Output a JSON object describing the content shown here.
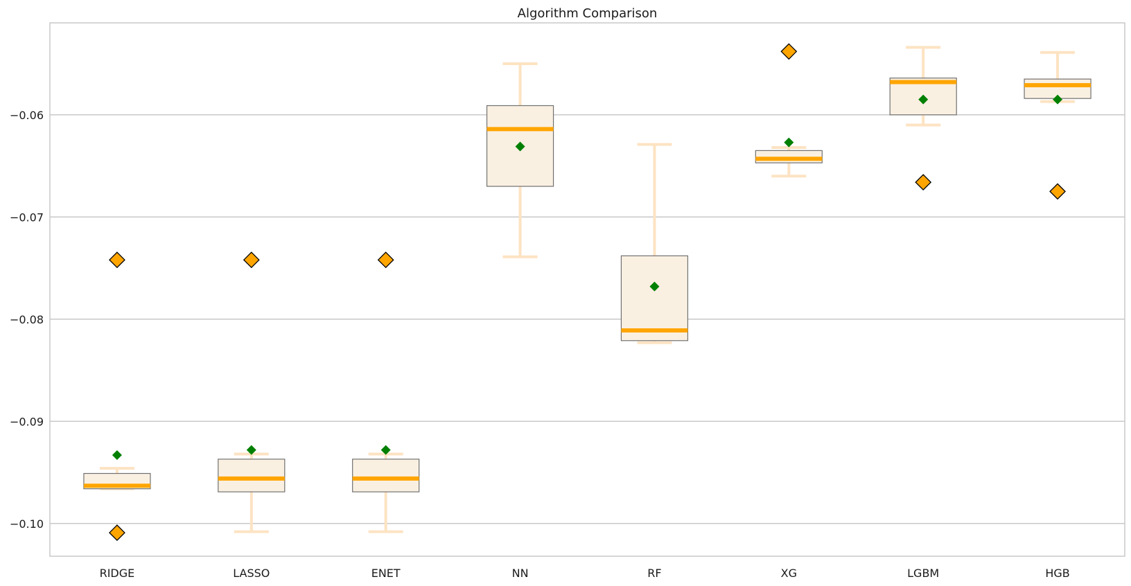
{
  "chart_data": {
    "type": "box",
    "title": "Algorithm Comparison",
    "xlabel": "",
    "ylabel": "",
    "categories": [
      "RIDGE",
      "LASSO",
      "ENET",
      "NN",
      "RF",
      "XG",
      "LGBM",
      "HGB"
    ],
    "ylim": [
      -0.1032,
      -0.051
    ],
    "yticks": [
      -0.06,
      -0.07,
      -0.08,
      -0.09,
      -0.1
    ],
    "ytick_labels": [
      "−0.06",
      "−0.07",
      "−0.08",
      "−0.09",
      "−0.10"
    ],
    "grid": "horizontal",
    "colors": {
      "box_fill": "#faf0e2",
      "box_edge": "#707070",
      "median": "#ffa500",
      "whisker": "#fde3c3",
      "mean_marker": "#008000",
      "flier_fill": "#ffa500",
      "flier_edge": "#000000",
      "grid": "#c8c8c8",
      "spine": "#c8c8c8"
    },
    "boxes": [
      {
        "label": "RIDGE",
        "whislo": -0.0966,
        "q1": -0.0966,
        "med": -0.0963,
        "q3": -0.0951,
        "whishi": -0.0946,
        "mean": -0.0933,
        "fliers": [
          -0.0742,
          -0.1009
        ]
      },
      {
        "label": "LASSO",
        "whislo": -0.1008,
        "q1": -0.0969,
        "med": -0.0956,
        "q3": -0.0937,
        "whishi": -0.0932,
        "mean": -0.0928,
        "fliers": [
          -0.0742
        ]
      },
      {
        "label": "ENET",
        "whislo": -0.1008,
        "q1": -0.0969,
        "med": -0.0956,
        "q3": -0.0937,
        "whishi": -0.0932,
        "mean": -0.0928,
        "fliers": [
          -0.0742
        ]
      },
      {
        "label": "NN",
        "whislo": -0.0739,
        "q1": -0.067,
        "med": -0.0614,
        "q3": -0.0591,
        "whishi": -0.055,
        "mean": -0.0631,
        "fliers": []
      },
      {
        "label": "RF",
        "whislo": -0.0823,
        "q1": -0.0821,
        "med": -0.0811,
        "q3": -0.0738,
        "whishi": -0.0629,
        "mean": -0.0768,
        "fliers": []
      },
      {
        "label": "XG",
        "whislo": -0.066,
        "q1": -0.0647,
        "med": -0.0643,
        "q3": -0.0635,
        "whishi": -0.0632,
        "mean": -0.0627,
        "fliers": [
          -0.0538
        ]
      },
      {
        "label": "LGBM",
        "whislo": -0.061,
        "q1": -0.06,
        "med": -0.0568,
        "q3": -0.0564,
        "whishi": -0.0534,
        "mean": -0.0585,
        "fliers": [
          -0.0666
        ]
      },
      {
        "label": "HGB",
        "whislo": -0.0587,
        "q1": -0.0584,
        "med": -0.0571,
        "q3": -0.0565,
        "whishi": -0.0539,
        "mean": -0.0585,
        "fliers": [
          -0.0675
        ]
      }
    ]
  }
}
